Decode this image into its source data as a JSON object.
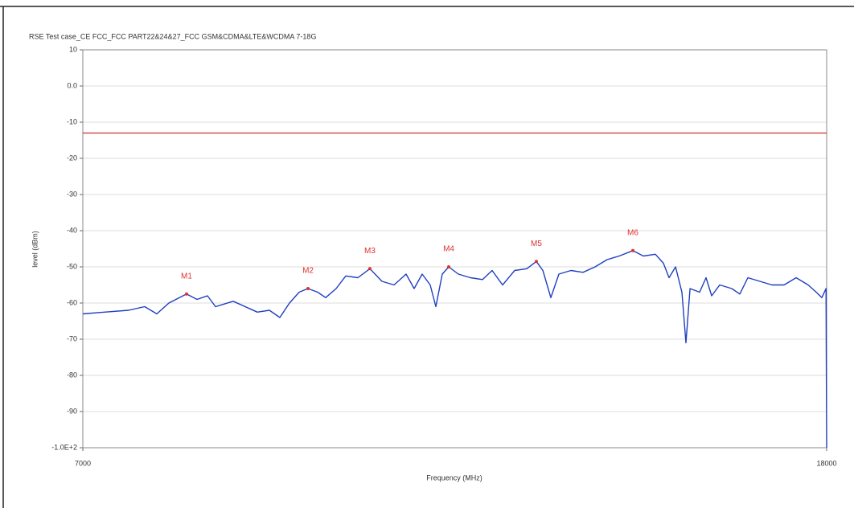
{
  "chart_data": {
    "type": "line",
    "title": "RSE Test case_CE FCC_FCC PART22&24&27_FCC GSM&CDMA&LTE&WCDMA 7-18G",
    "xlabel": "Frequency (MHz)",
    "ylabel": "level (dBm)",
    "xlim": [
      7000,
      18000
    ],
    "xticks": [
      7000,
      18000
    ],
    "ylim": [
      -100,
      10
    ],
    "yticks": [
      10,
      {
        "value": 0,
        "label": "0.0"
      },
      -10,
      -20,
      -30,
      -40,
      -50,
      -60,
      -70,
      -80,
      -90,
      {
        "value": -100,
        "label": "-1.0E+2"
      }
    ],
    "grid": true,
    "color": "#1f3fbf",
    "x": [
      7000,
      7321,
      7678,
      7916,
      8094,
      8272,
      8534,
      8689,
      8843,
      8962,
      9224,
      9462,
      9581,
      9759,
      9914,
      10056,
      10199,
      10330,
      10473,
      10591,
      10746,
      10889,
      11067,
      11245,
      11424,
      11602,
      11781,
      11900,
      12018,
      12137,
      12221,
      12316,
      12411,
      12554,
      12732,
      12911,
      13053,
      13208,
      13386,
      13565,
      13707,
      13803,
      13921,
      14040,
      14218,
      14397,
      14575,
      14754,
      14932,
      15134,
      15289,
      15467,
      15586,
      15669,
      15765,
      15860,
      15919,
      15979,
      16121,
      16216,
      16299,
      16418,
      16597,
      16716,
      16835,
      17013,
      17192,
      17370,
      17549,
      17727,
      17846,
      17929,
      17990,
      18000
    ],
    "values": [
      -63,
      -62.5,
      -62,
      -61,
      -63,
      -60,
      -57.5,
      -59,
      -58,
      -61,
      -59.5,
      -61.5,
      -62.5,
      -62,
      -64,
      -60,
      -57,
      -56,
      -57,
      -58.5,
      -56,
      -52.5,
      -53,
      -50.5,
      -54,
      -55,
      -52,
      -56,
      -52,
      -55,
      -61,
      -52,
      -50,
      -52,
      -53,
      -53.5,
      -51,
      -55,
      -51,
      -50.5,
      -48.5,
      -51,
      -58.5,
      -52,
      -51,
      -51.5,
      -50,
      -48,
      -47,
      -45.5,
      -47,
      -46.5,
      -49,
      -53,
      -50,
      -57,
      -71,
      -56,
      -57,
      -53,
      -58,
      -55,
      -56,
      -57.5,
      -53,
      -54,
      -55,
      -55,
      -53,
      -55,
      -57,
      -58.5,
      -56,
      -100
    ],
    "limit": {
      "value": -13,
      "color": "#cc3333"
    },
    "markers": [
      {
        "label": "M1",
        "x": 8534,
        "value": -57.5
      },
      {
        "label": "M2",
        "x": 10330,
        "value": -56
      },
      {
        "label": "M3",
        "x": 11245,
        "value": -50.5
      },
      {
        "label": "M4",
        "x": 12411,
        "value": -50
      },
      {
        "label": "M5",
        "x": 13707,
        "value": -48.5
      },
      {
        "label": "M6",
        "x": 15134,
        "value": -45.5
      }
    ],
    "marker_color": "#e03030"
  }
}
